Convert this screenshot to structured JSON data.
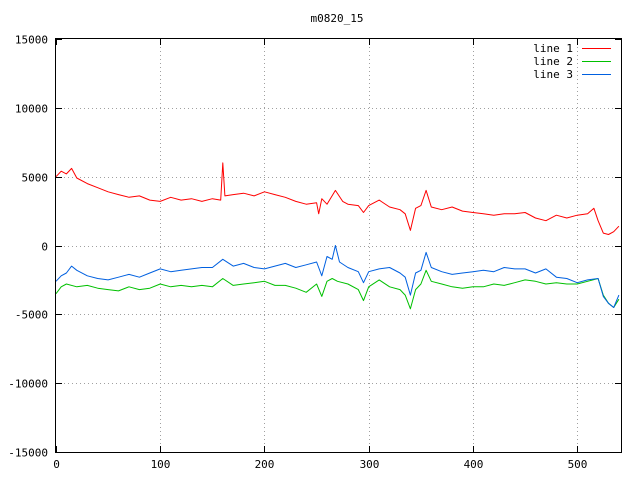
{
  "chart_data": {
    "type": "line",
    "title": "m0820_15",
    "xlabel": "",
    "ylabel": "",
    "xlim": [
      0,
      542
    ],
    "ylim": [
      -15000,
      15000
    ],
    "xticks": [
      0,
      100,
      200,
      300,
      400,
      500
    ],
    "yticks": [
      -15000,
      -10000,
      -5000,
      0,
      5000,
      10000,
      15000
    ],
    "grid": true,
    "legend_position": "top-right",
    "series": [
      {
        "name": "line 1",
        "color": "#ff0000",
        "x": [
          0,
          5,
          10,
          15,
          20,
          30,
          40,
          50,
          60,
          70,
          80,
          90,
          100,
          110,
          120,
          130,
          140,
          150,
          158,
          160,
          162,
          170,
          180,
          190,
          200,
          210,
          220,
          230,
          240,
          250,
          252,
          255,
          260,
          268,
          275,
          280,
          290,
          295,
          300,
          310,
          320,
          330,
          335,
          340,
          345,
          350,
          355,
          360,
          370,
          380,
          390,
          400,
          410,
          420,
          430,
          440,
          450,
          460,
          470,
          480,
          490,
          500,
          510,
          516,
          520,
          525,
          530,
          535,
          540
        ],
        "y": [
          5000,
          5400,
          5200,
          5600,
          4900,
          4500,
          4200,
          3900,
          3700,
          3500,
          3600,
          3300,
          3200,
          3500,
          3300,
          3400,
          3200,
          3400,
          3300,
          6000,
          3600,
          3700,
          3800,
          3600,
          3900,
          3700,
          3500,
          3200,
          3000,
          3100,
          2300,
          3400,
          3000,
          4000,
          3200,
          3000,
          2900,
          2400,
          2900,
          3300,
          2800,
          2600,
          2300,
          1100,
          2700,
          2900,
          4000,
          2800,
          2600,
          2800,
          2500,
          2400,
          2300,
          2200,
          2300,
          2300,
          2400,
          2000,
          1800,
          2200,
          2000,
          2200,
          2300,
          2700,
          1800,
          900,
          800,
          1000,
          1400
        ]
      },
      {
        "name": "line 2",
        "color": "#00c000",
        "x": [
          0,
          5,
          10,
          20,
          30,
          40,
          50,
          60,
          70,
          80,
          90,
          100,
          110,
          120,
          130,
          140,
          150,
          160,
          170,
          180,
          190,
          200,
          210,
          220,
          230,
          240,
          250,
          255,
          260,
          265,
          270,
          280,
          290,
          295,
          300,
          310,
          320,
          330,
          335,
          340,
          345,
          350,
          355,
          360,
          370,
          380,
          390,
          400,
          410,
          420,
          430,
          440,
          450,
          460,
          470,
          480,
          490,
          500,
          510,
          520,
          525,
          530,
          535,
          540
        ],
        "y": [
          -3500,
          -3000,
          -2800,
          -3000,
          -2900,
          -3100,
          -3200,
          -3300,
          -3000,
          -3200,
          -3100,
          -2800,
          -3000,
          -2900,
          -3000,
          -2900,
          -3000,
          -2400,
          -2900,
          -2800,
          -2700,
          -2600,
          -2900,
          -2900,
          -3100,
          -3400,
          -2800,
          -3700,
          -2600,
          -2400,
          -2600,
          -2800,
          -3200,
          -4000,
          -3000,
          -2500,
          -3000,
          -3200,
          -3600,
          -4600,
          -3200,
          -2800,
          -1800,
          -2600,
          -2800,
          -3000,
          -3100,
          -3000,
          -3000,
          -2800,
          -2900,
          -2700,
          -2500,
          -2600,
          -2800,
          -2700,
          -2800,
          -2800,
          -2600,
          -2400,
          -3600,
          -4200,
          -4500,
          -3900
        ]
      },
      {
        "name": "line 3",
        "color": "#0060e0",
        "x": [
          0,
          5,
          10,
          15,
          20,
          30,
          40,
          50,
          60,
          70,
          80,
          90,
          100,
          110,
          120,
          130,
          140,
          150,
          160,
          170,
          180,
          190,
          200,
          210,
          220,
          230,
          240,
          250,
          255,
          260,
          265,
          268,
          272,
          280,
          290,
          295,
          300,
          310,
          320,
          330,
          335,
          340,
          345,
          350,
          355,
          360,
          370,
          380,
          390,
          400,
          410,
          420,
          430,
          440,
          450,
          460,
          470,
          480,
          490,
          500,
          510,
          520,
          525,
          530,
          535,
          540
        ],
        "y": [
          -2600,
          -2200,
          -2000,
          -1500,
          -1800,
          -2200,
          -2400,
          -2500,
          -2300,
          -2100,
          -2300,
          -2000,
          -1700,
          -1900,
          -1800,
          -1700,
          -1600,
          -1600,
          -1000,
          -1500,
          -1300,
          -1600,
          -1700,
          -1500,
          -1300,
          -1600,
          -1400,
          -1200,
          -2200,
          -800,
          -1000,
          0,
          -1200,
          -1600,
          -1900,
          -2700,
          -1900,
          -1700,
          -1600,
          -2000,
          -2300,
          -3600,
          -2000,
          -1800,
          -500,
          -1600,
          -1900,
          -2100,
          -2000,
          -1900,
          -1800,
          -1900,
          -1600,
          -1700,
          -1700,
          -2000,
          -1700,
          -2300,
          -2400,
          -2700,
          -2500,
          -2400,
          -3700,
          -4200,
          -4500,
          -3600
        ]
      }
    ]
  }
}
